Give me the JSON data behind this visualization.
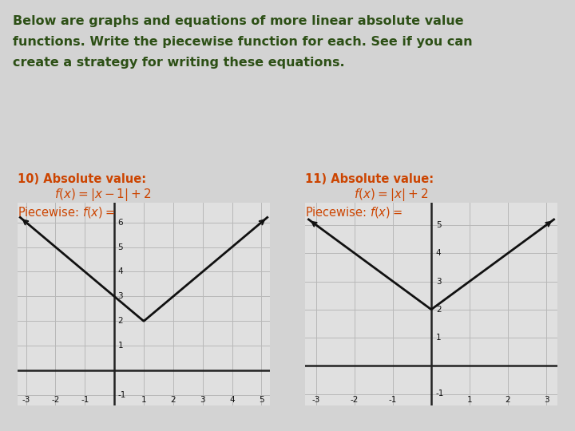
{
  "bg_color": "#d3d3d3",
  "header_text_lines": [
    "Below are graphs and equations of more linear absolute value",
    "functions. Write the piecewise function for each. See if you can",
    "create a strategy for writing these equations."
  ],
  "header_color": "#2d5016",
  "header_fontsize": 11.5,
  "label_color": "#cc4400",
  "graph1": {
    "title_num": "10) Absolute value:",
    "formula_latex": "$f(x) = |x-1|+2$",
    "piecewise_latex": "Piecewise: $f(x) =$",
    "xlim": [
      -3.3,
      5.3
    ],
    "ylim": [
      -1.4,
      6.8
    ],
    "xticks": [
      -3,
      -2,
      -1,
      1,
      2,
      3,
      4,
      5
    ],
    "yticks": [
      -1,
      1,
      2,
      3,
      4,
      5,
      6
    ],
    "vertex_x": 1,
    "vertex_y": 2,
    "x_start": -3.2,
    "x_end": 5.2
  },
  "graph2": {
    "title_num": "11) Absolute value:",
    "formula_latex": "$f(x) = |x|+2$",
    "piecewise_latex": "Piecewise: $f(x) =$",
    "xlim": [
      -3.3,
      3.3
    ],
    "ylim": [
      -1.4,
      5.8
    ],
    "xticks": [
      -3,
      -2,
      -1,
      1,
      2,
      3
    ],
    "yticks": [
      -1,
      1,
      2,
      3,
      4,
      5
    ],
    "vertex_x": 0,
    "vertex_y": 2,
    "x_start": -3.2,
    "x_end": 3.2
  },
  "grid_color": "#b8b8b8",
  "axis_color": "#222222",
  "line_color": "#111111",
  "tick_label_fontsize": 7.5,
  "graph_bg": "#e0e0e0"
}
